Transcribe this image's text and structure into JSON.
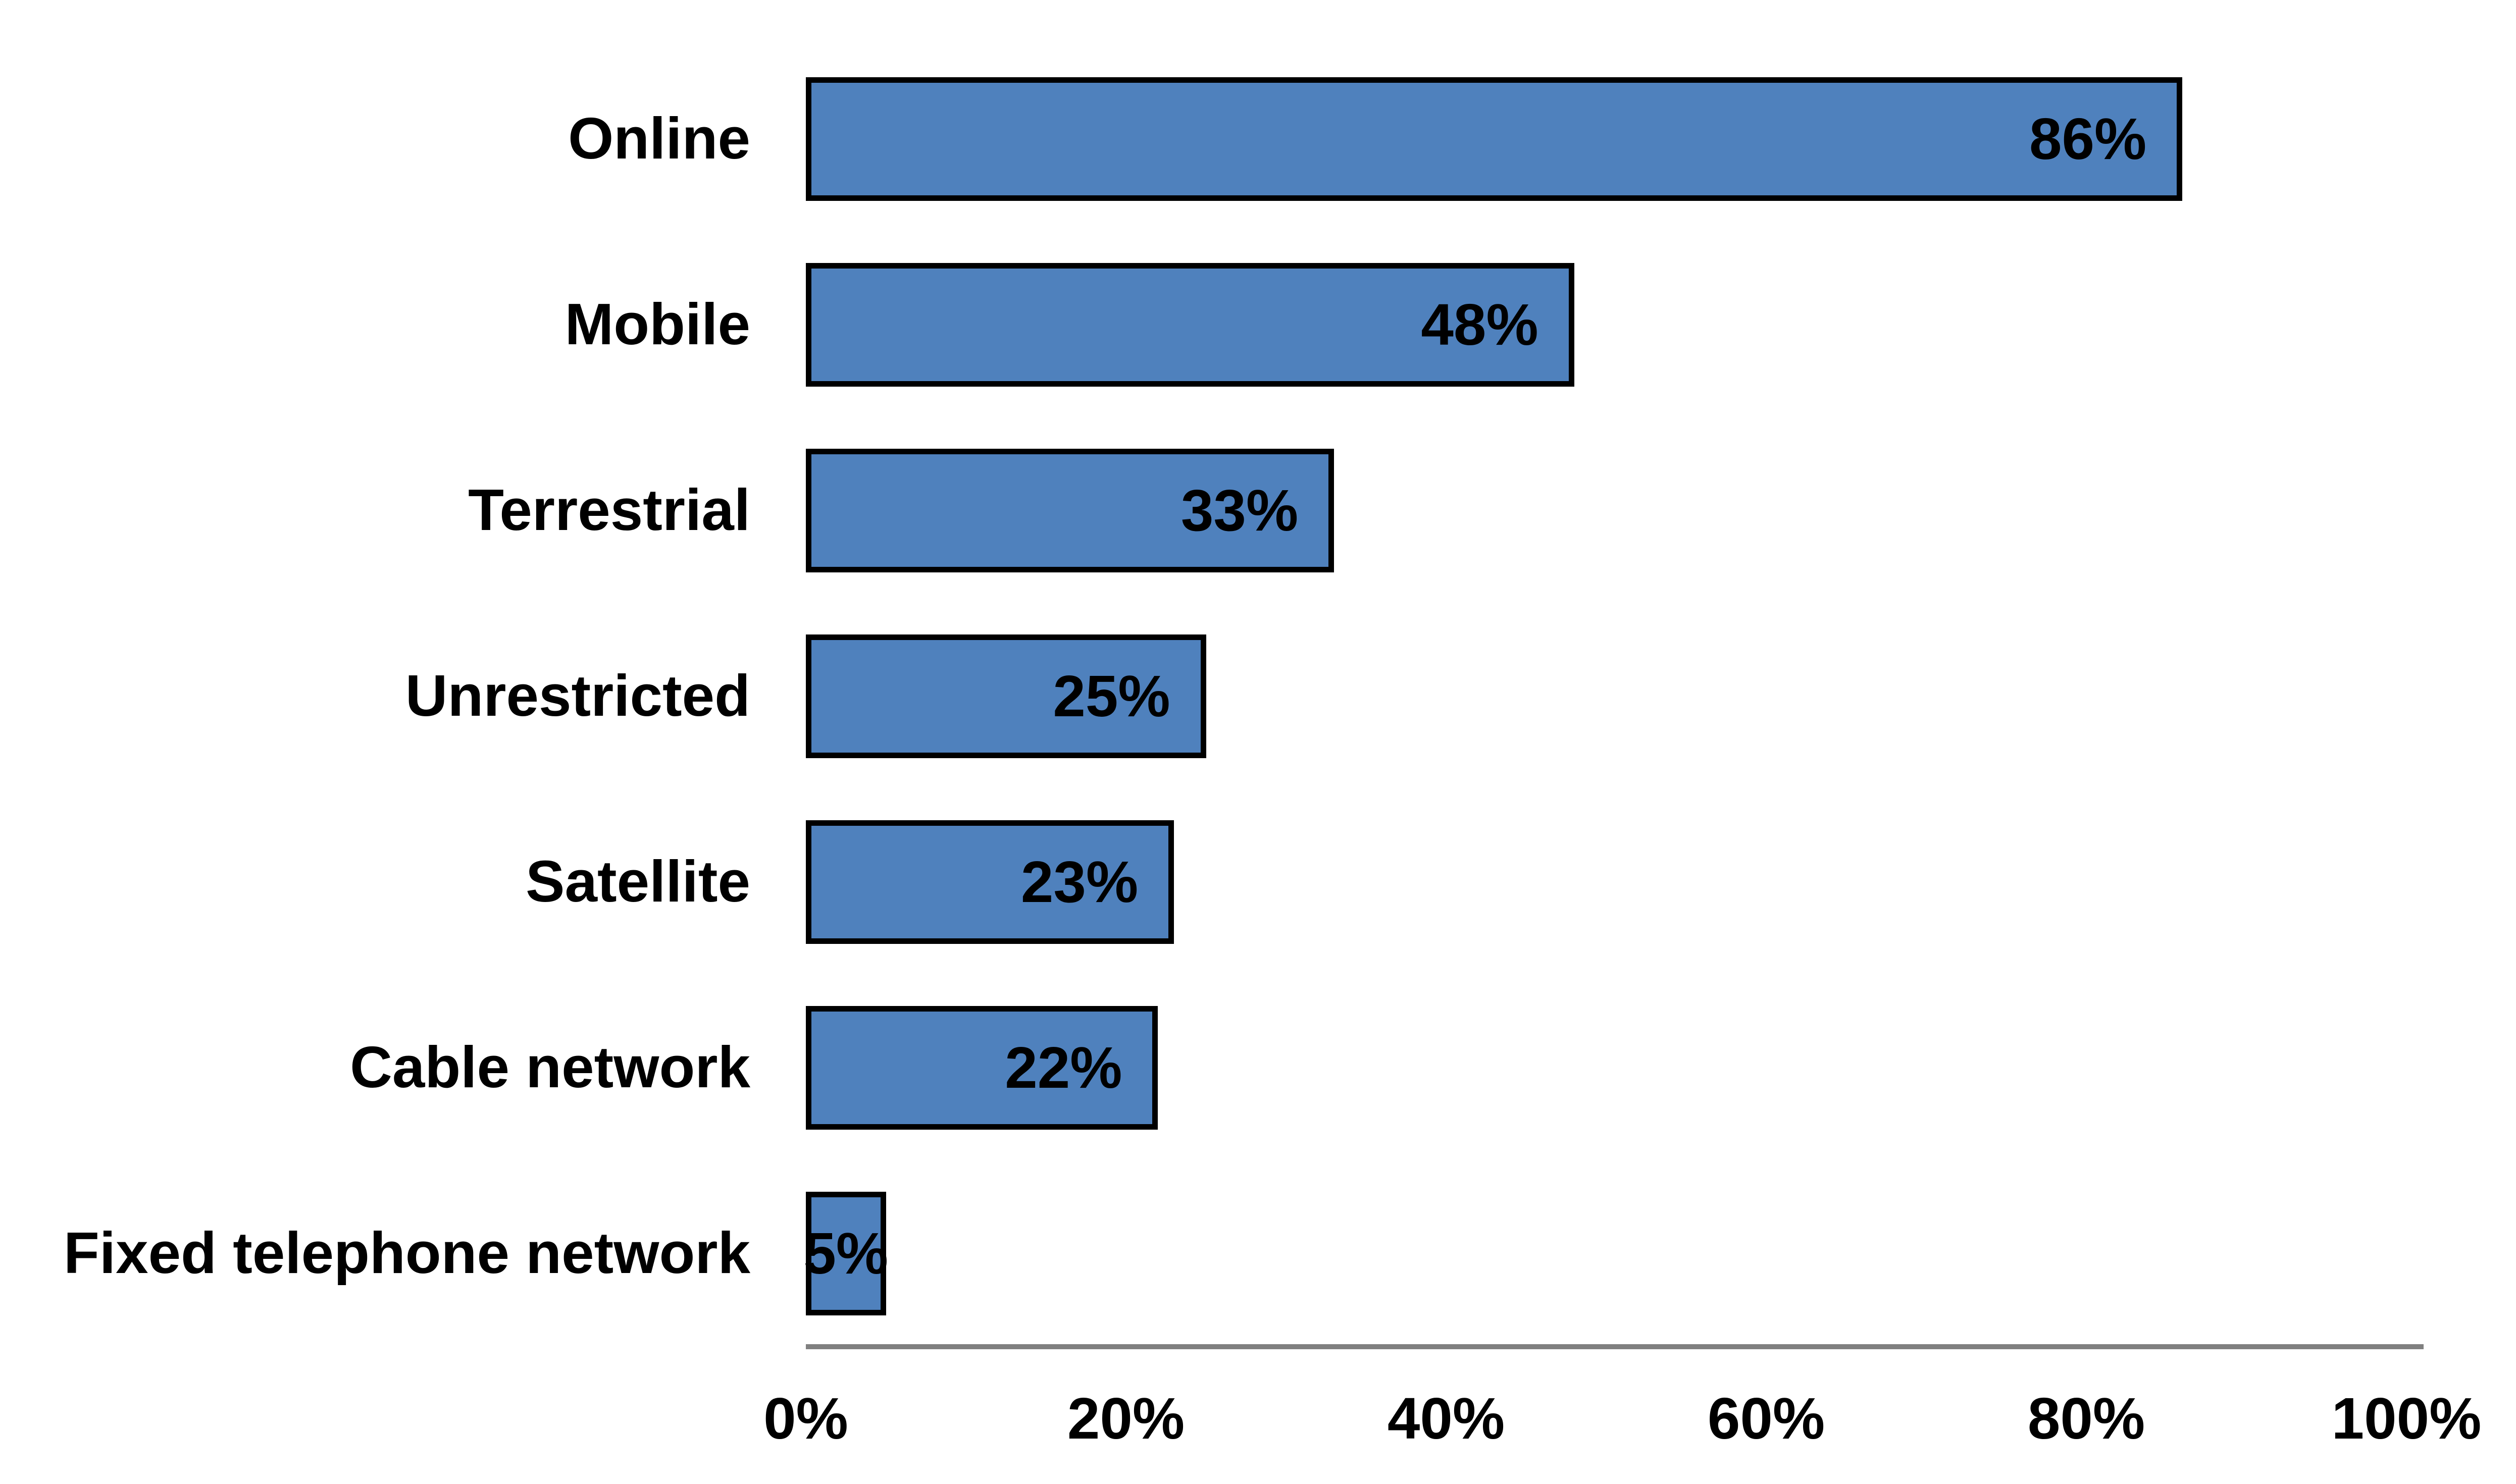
{
  "chart_data": {
    "type": "bar",
    "orientation": "horizontal",
    "title": "",
    "xlabel": "",
    "ylabel": "",
    "categories": [
      "Online",
      "Mobile",
      "Terrestrial",
      "Unrestricted",
      "Satellite",
      "Cable network",
      "Fixed telephone network"
    ],
    "values": [
      86,
      48,
      33,
      25,
      23,
      22,
      5
    ],
    "value_labels": [
      "86%",
      "48%",
      "33%",
      "25%",
      "23%",
      "22%",
      "5%"
    ],
    "xlim": [
      0,
      100
    ],
    "x_tick_values": [
      0,
      20,
      40,
      60,
      80,
      100
    ],
    "x_tick_labels": [
      "0%",
      "20%",
      "40%",
      "60%",
      "80%",
      "100%"
    ],
    "grid": false,
    "legend": "none",
    "colors": {
      "bar_fill": "#4F81BD",
      "bar_border": "#000000",
      "text": "#000000",
      "axis_line": "#808080",
      "background": "#FFFFFF"
    }
  }
}
